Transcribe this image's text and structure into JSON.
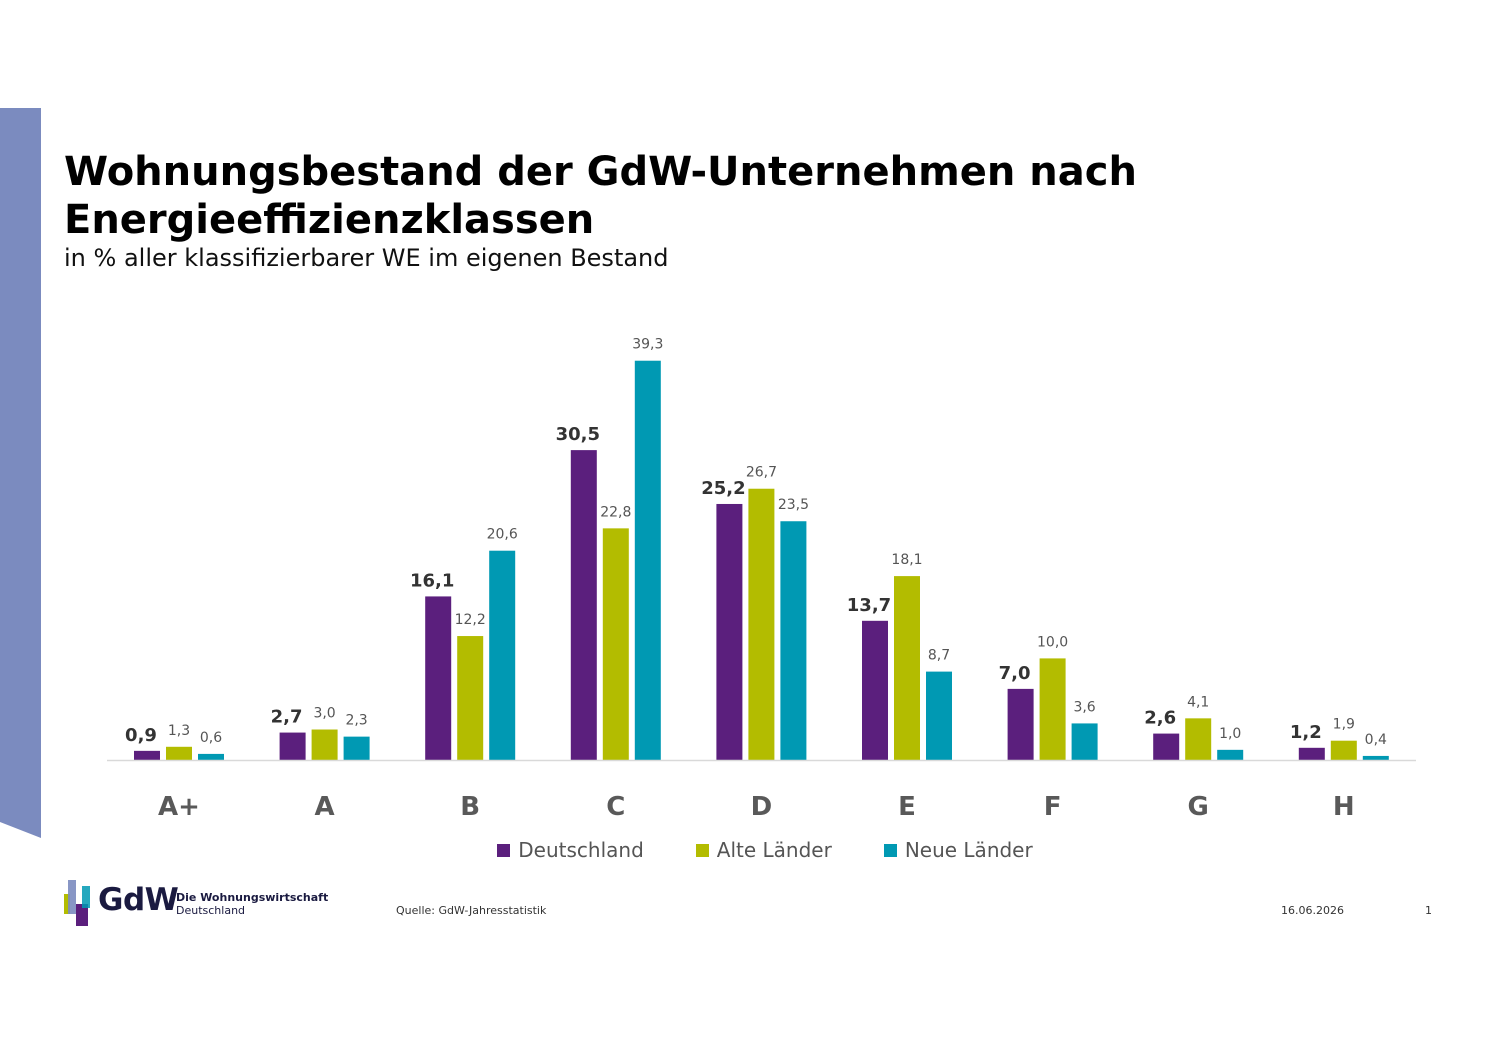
{
  "header": {
    "title": "Wohnungsbestand der GdW-Unternehmen nach Energieeffizienzklassen",
    "subtitle": "in % aller klassifizierbarer WE im eigenen Bestand"
  },
  "colors": {
    "side_bar": "#7b8bbf",
    "Deutschland": "#5b1f7d",
    "Alte Länder": "#b3bc00",
    "Neue Länder": "#0099b3",
    "axis": "#d9d9d9",
    "category_label": "#595959"
  },
  "chart_data": {
    "type": "bar",
    "categories": [
      "A+",
      "A",
      "B",
      "C",
      "D",
      "E",
      "F",
      "G",
      "H"
    ],
    "series": [
      {
        "name": "Deutschland",
        "values": [
          0.9,
          2.7,
          16.1,
          30.5,
          25.2,
          13.7,
          7.0,
          2.6,
          1.2
        ],
        "labels": [
          "0,9",
          "2,7",
          "16,1",
          "30,5",
          "25,2",
          "13,7",
          "7,0",
          "2,6",
          "1,2"
        ]
      },
      {
        "name": "Alte Länder",
        "values": [
          1.3,
          3.0,
          12.2,
          22.8,
          26.7,
          18.1,
          10.0,
          4.1,
          1.9
        ],
        "labels": [
          "1,3",
          "3,0",
          "12,2",
          "22,8",
          "26,7",
          "18,1",
          "10,0",
          "4,1",
          "1,9"
        ]
      },
      {
        "name": "Neue Länder",
        "values": [
          0.6,
          2.3,
          20.6,
          39.3,
          23.5,
          8.7,
          3.6,
          1.0,
          0.4
        ],
        "labels": [
          "0,6",
          "2,3",
          "20,6",
          "39,3",
          "23,5",
          "8,7",
          "3,6",
          "1,0",
          "0,4"
        ]
      }
    ],
    "ylim": [
      0,
      40
    ],
    "grid": false,
    "legend": "bottom-center"
  },
  "legend": [
    "Deutschland",
    "Alte Länder",
    "Neue Länder"
  ],
  "logo": {
    "word": "GdW",
    "tag_line1": "Die Wohnungswirtschaft",
    "tag_line2": "Deutschland"
  },
  "footer": {
    "source": "Quelle: GdW-Jahresstatistik",
    "date": "16.06.2026",
    "page": "1"
  }
}
